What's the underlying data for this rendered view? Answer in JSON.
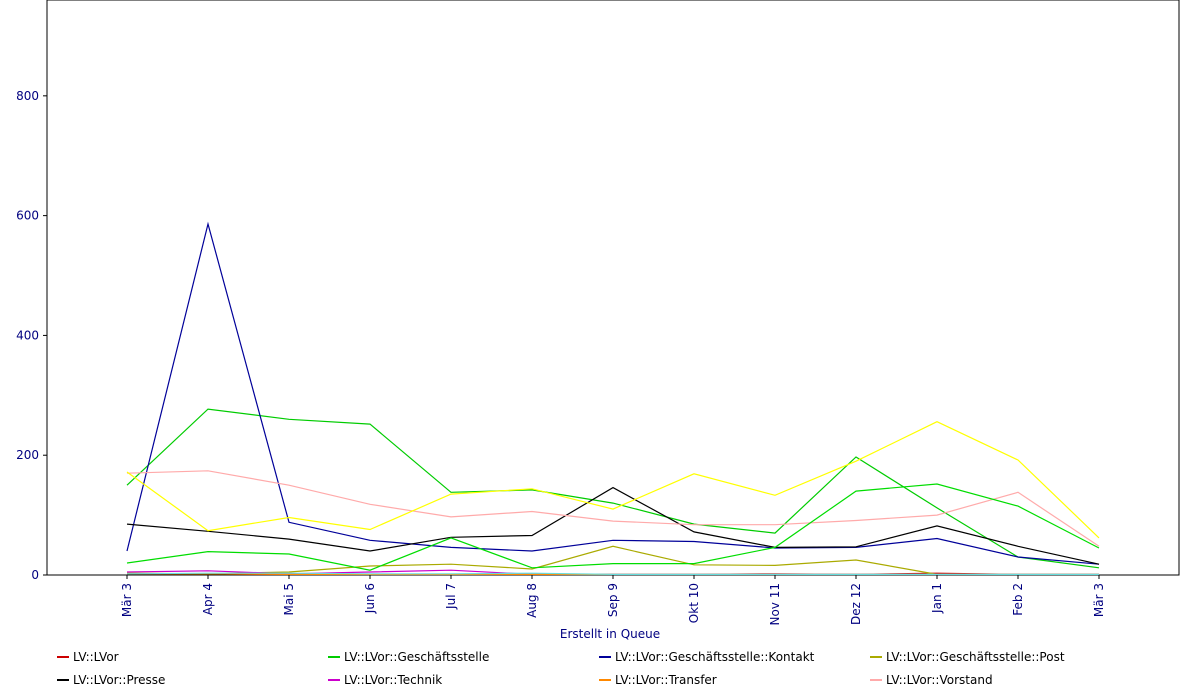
{
  "chart_data": {
    "type": "line",
    "xlabel": "Erstellt in Queue",
    "ylabel": "",
    "categories": [
      "Mär 3",
      "Apr 4",
      "Mai 5",
      "Jun 6",
      "Jul 7",
      "Aug 8",
      "Sep 9",
      "Okt 10",
      "Nov 11",
      "Dez 12",
      "Jan 1",
      "Feb 2",
      "Mär 3"
    ],
    "ylim": [
      0,
      960
    ],
    "yticks": [
      0,
      200,
      400,
      600,
      800
    ],
    "grid": false,
    "legend_position": "bottom",
    "series": [
      {
        "name": "LV::LVor",
        "color": "#cc0000",
        "values": [
          2,
          2,
          1,
          1,
          1,
          1,
          1,
          1,
          2,
          1,
          3,
          1,
          1
        ]
      },
      {
        "name": "LV::LVor::Geschäftsstelle",
        "color": "#00cc00",
        "values": [
          150,
          277,
          260,
          252,
          138,
          142,
          120,
          85,
          70,
          197,
          112,
          30,
          12
        ]
      },
      {
        "name": "LV::LVor::Geschäftsstelle::Kontakt",
        "color": "#000099",
        "values": [
          40,
          586,
          88,
          58,
          46,
          40,
          58,
          56,
          45,
          46,
          61,
          30,
          18
        ]
      },
      {
        "name": "LV::LVor::Geschäftsstelle::Post",
        "color": "#aaaa00",
        "values": [
          3,
          2,
          5,
          15,
          18,
          10,
          48,
          17,
          16,
          25,
          1,
          1,
          1
        ]
      },
      {
        "name": "LV::LVor::Presse",
        "color": "#000000",
        "values": [
          85,
          73,
          60,
          40,
          63,
          66,
          146,
          72,
          46,
          47,
          82,
          48,
          18
        ]
      },
      {
        "name": "LV::LVor::Technik",
        "color": "#cc00cc",
        "values": [
          5,
          7,
          2,
          5,
          8,
          1,
          1,
          1,
          1,
          1,
          1,
          1,
          1
        ]
      },
      {
        "name": "LV::LVor::Transfer",
        "color": "#ff8800",
        "values": [
          2,
          2,
          1,
          1,
          1,
          1,
          1,
          1,
          1,
          1,
          1,
          1,
          1
        ]
      },
      {
        "name": "LV::LVor::Vorstand",
        "color": "#ffaaaa",
        "values": [
          170,
          174,
          150,
          118,
          97,
          106,
          90,
          84,
          84,
          91,
          100,
          138,
          48
        ]
      },
      {
        "name": "",
        "color": "#ffff00",
        "values": [
          172,
          74,
          96,
          76,
          135,
          144,
          110,
          169,
          133,
          190,
          256,
          192,
          62
        ]
      },
      {
        "name": "",
        "color": "#00dd00",
        "values": [
          20,
          39,
          35,
          8,
          62,
          12,
          19,
          19,
          46,
          140,
          152,
          115,
          45
        ]
      },
      {
        "name": "",
        "color": "#66dddd",
        "values": [
          2,
          3,
          3,
          2,
          2,
          3,
          1,
          1,
          1,
          1,
          1,
          1,
          1
        ]
      }
    ]
  }
}
